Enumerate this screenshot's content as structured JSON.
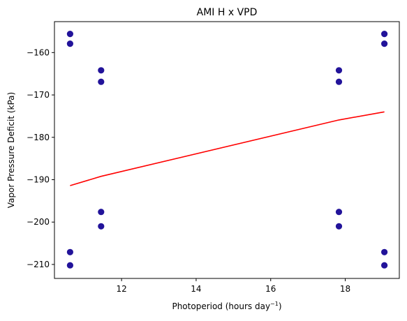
{
  "chart_data": {
    "type": "scatter",
    "title": "AMI H x VPD",
    "xlabel": "Photoperiod (hours day",
    "xlabel_sup": "−1",
    "xlabel_end": ")",
    "ylabel": "Vapor Pressure Deficit (kPa)",
    "xlim": [
      10.2,
      19.45
    ],
    "ylim": [
      -213.3,
      -152.7
    ],
    "x_ticks": [
      12,
      14,
      16,
      18
    ],
    "x_tick_labels": [
      "12",
      "14",
      "16",
      "18"
    ],
    "y_ticks": [
      -160,
      -170,
      -180,
      -190,
      -200,
      -210
    ],
    "y_tick_labels": [
      "−160",
      "−170",
      "−180",
      "−190",
      "−200",
      "−210"
    ],
    "grid": false,
    "colors": {
      "points": "#22139a",
      "trend": "#ff0000"
    },
    "series": [
      {
        "type": "scatter",
        "points": [
          {
            "x": 10.62,
            "y": -155.6
          },
          {
            "x": 10.62,
            "y": -157.9
          },
          {
            "x": 10.62,
            "y": -207.1
          },
          {
            "x": 10.62,
            "y": -210.2
          },
          {
            "x": 11.45,
            "y": -164.2
          },
          {
            "x": 11.45,
            "y": -166.9
          },
          {
            "x": 11.45,
            "y": -197.6
          },
          {
            "x": 11.45,
            "y": -201.0
          },
          {
            "x": 17.83,
            "y": -164.2
          },
          {
            "x": 17.83,
            "y": -166.9
          },
          {
            "x": 17.83,
            "y": -197.6
          },
          {
            "x": 17.83,
            "y": -201.0
          },
          {
            "x": 19.05,
            "y": -155.6
          },
          {
            "x": 19.05,
            "y": -157.9
          },
          {
            "x": 19.05,
            "y": -207.1
          },
          {
            "x": 19.05,
            "y": -210.2
          }
        ]
      },
      {
        "type": "line",
        "points": [
          {
            "x": 10.62,
            "y": -191.4
          },
          {
            "x": 11.45,
            "y": -189.2
          },
          {
            "x": 17.83,
            "y": -175.9
          },
          {
            "x": 19.05,
            "y": -174.0
          }
        ]
      }
    ]
  }
}
